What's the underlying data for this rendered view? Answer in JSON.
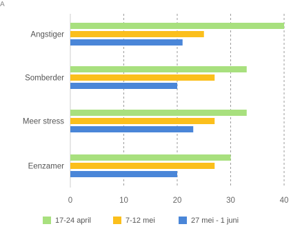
{
  "corner_mark": "A",
  "chart_data": {
    "type": "bar",
    "orientation": "horizontal",
    "categories": [
      "Angstiger",
      "Somberder",
      "Meer stress",
      "Eenzamer"
    ],
    "series": [
      {
        "name": "17-24 april",
        "color": "#a8e07e",
        "values": [
          40,
          33,
          33,
          30
        ]
      },
      {
        "name": "7-12 mei",
        "color": "#fbbf1c",
        "values": [
          25,
          27,
          27,
          27
        ]
      },
      {
        "name": "27 mei - 1 juni",
        "color": "#4a86d8",
        "values": [
          21,
          20,
          23,
          20
        ]
      }
    ],
    "xlim": [
      0,
      40
    ],
    "xticks": [
      "0",
      "10",
      "20",
      "30",
      "40"
    ],
    "title": "",
    "xlabel": "",
    "ylabel": "",
    "grid": "vertical dashed",
    "legend_position": "bottom"
  }
}
